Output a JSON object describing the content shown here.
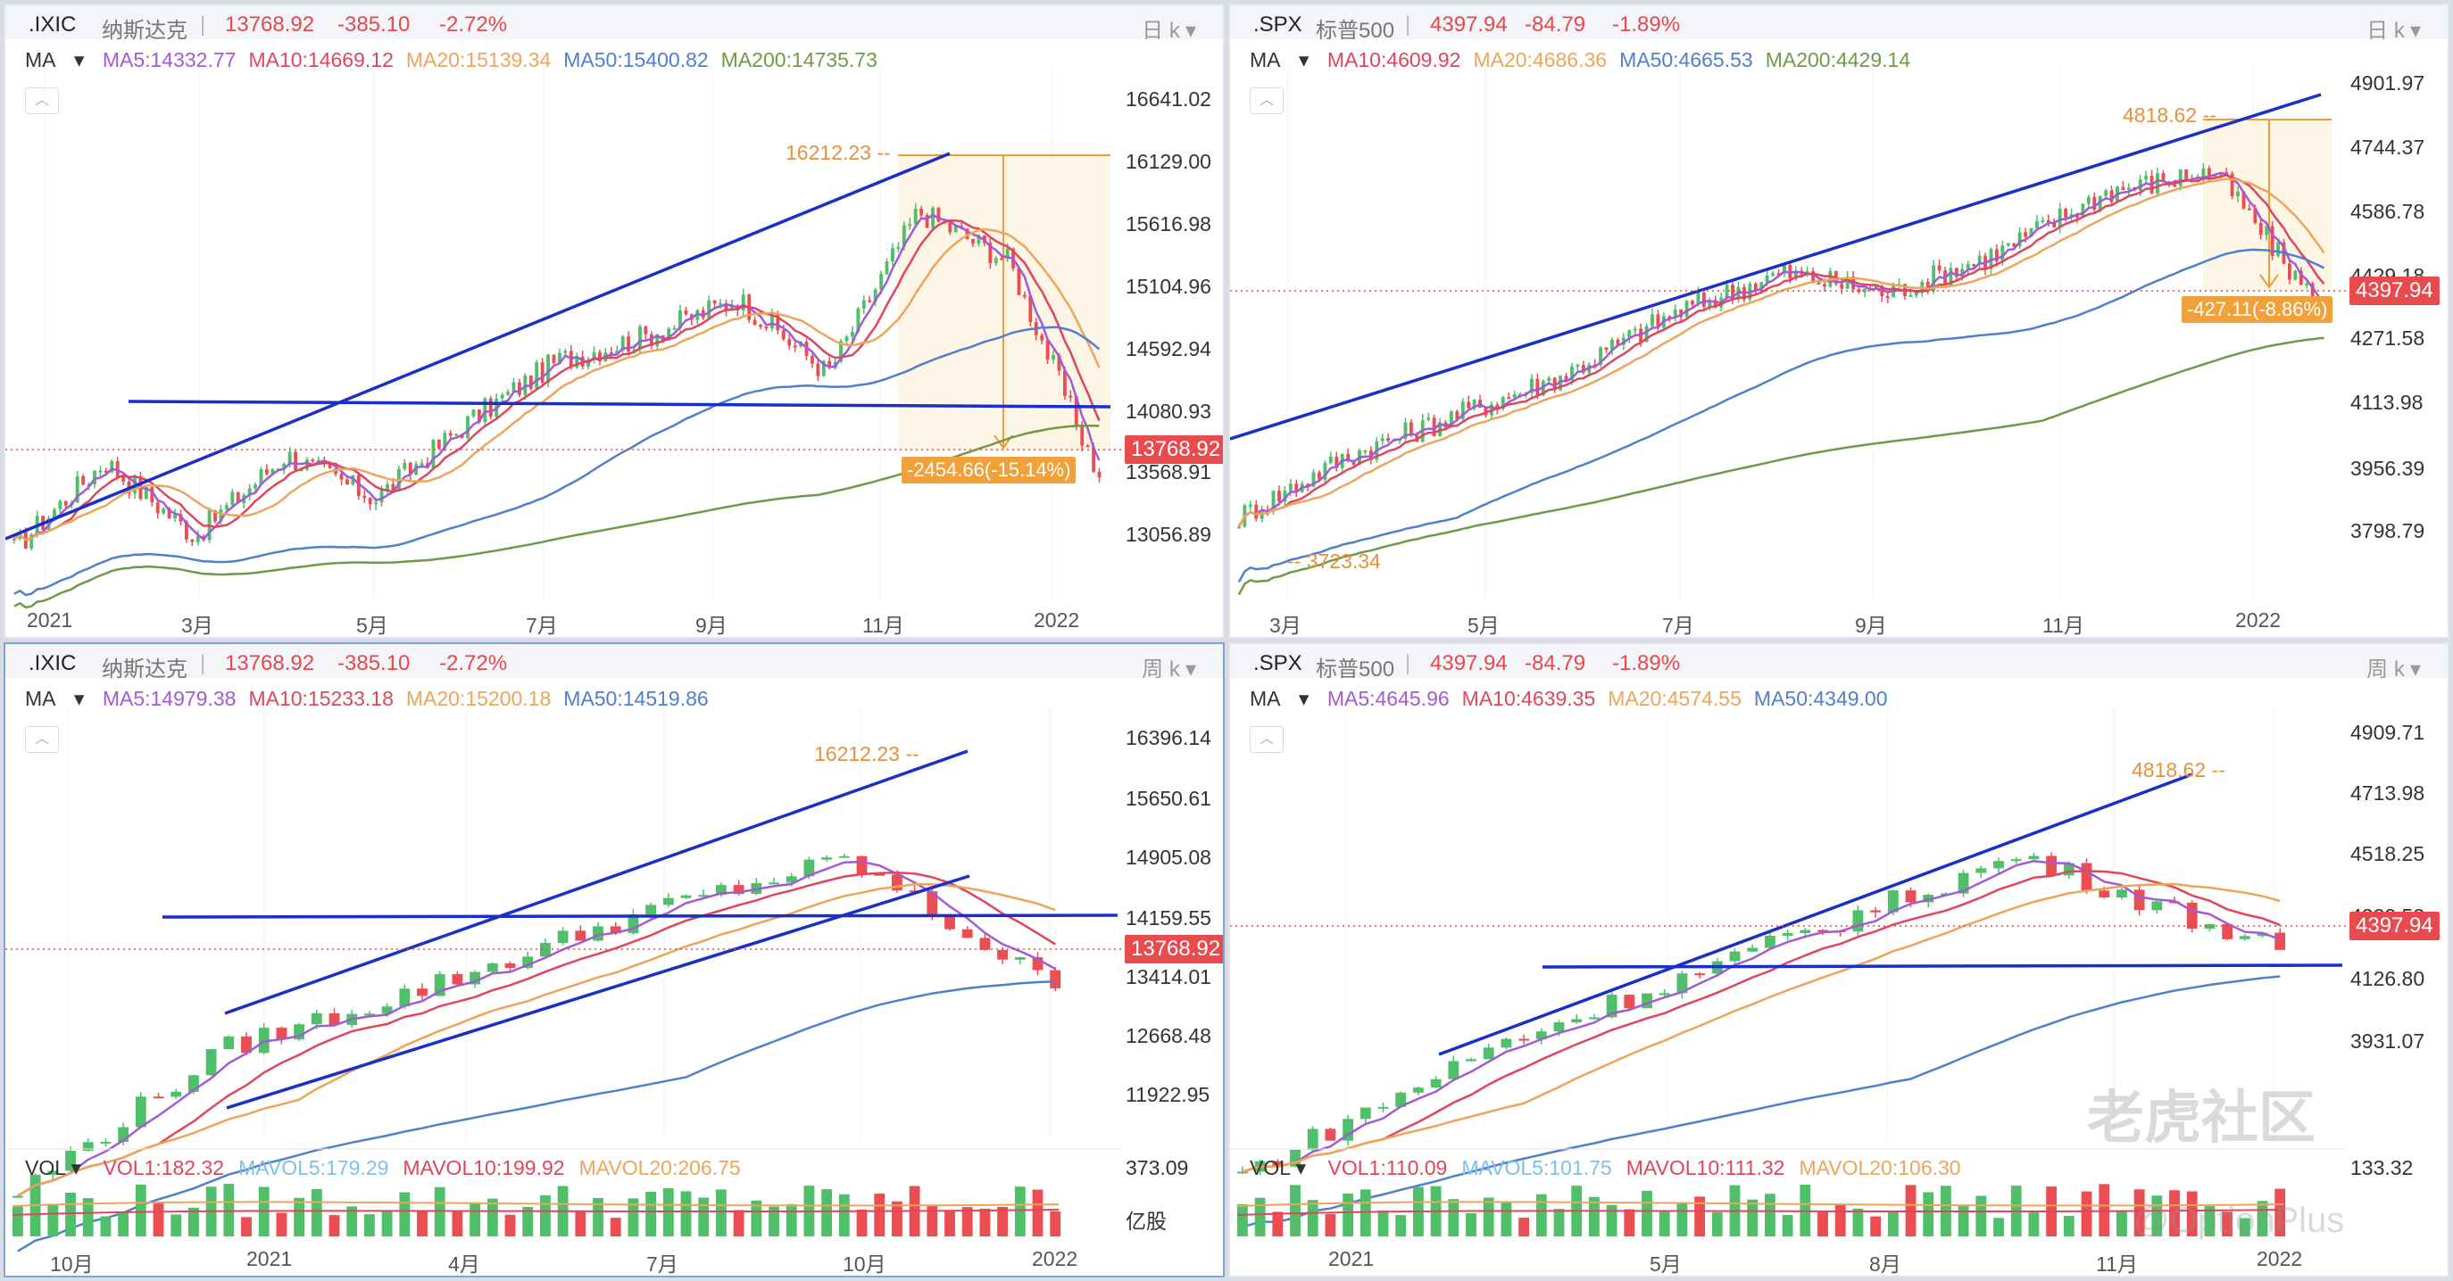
{
  "panels": [
    {
      "symbol": ".IXIC",
      "name": "纳斯达克",
      "price": "13768.92",
      "change": "-385.10",
      "pct": "-2.72%",
      "period": "日 k",
      "ma_label": "MA",
      "ma": [
        {
          "text": "MA5:14332.77",
          "color": "#a35ad6"
        },
        {
          "text": "MA10:14669.12",
          "color": "#e0455e"
        },
        {
          "text": "MA20:15139.34",
          "color": "#eda55a"
        },
        {
          "text": "MA50:15400.82",
          "color": "#4f7fcf"
        },
        {
          "text": "MA200:14735.73",
          "color": "#6f9a47"
        }
      ],
      "y_ticks": [
        "16641.02",
        "16129.00",
        "15616.98",
        "15104.96",
        "14592.94",
        "14080.93",
        "13568.91",
        "13056.89"
      ],
      "x_ticks": [
        "2021",
        "3月",
        "5月",
        "7月",
        "9月",
        "11月",
        "2022"
      ],
      "last_tag": "13768.92",
      "high_label": "16212.23",
      "drop_label": "-2454.66(-15.14%)"
    },
    {
      "symbol": ".SPX",
      "name": "标普500",
      "price": "4397.94",
      "change": "-84.79",
      "pct": "-1.89%",
      "period": "日 k",
      "ma_label": "MA",
      "ma": [
        {
          "text": "MA10:4609.92",
          "color": "#e0455e"
        },
        {
          "text": "MA20:4686.36",
          "color": "#eda55a"
        },
        {
          "text": "MA50:4665.53",
          "color": "#4f7fcf"
        },
        {
          "text": "MA200:4429.14",
          "color": "#6f9a47"
        }
      ],
      "y_ticks": [
        "4901.97",
        "4744.37",
        "4586.78",
        "4429.18",
        "4271.58",
        "4113.98",
        "3956.39",
        "3798.79"
      ],
      "x_ticks": [
        "3月",
        "5月",
        "7月",
        "9月",
        "11月",
        "2022"
      ],
      "last_tag": "4397.94",
      "high_label": "4818.62",
      "low_label": "3723.34",
      "drop_label": "-427.11(-8.86%)"
    },
    {
      "symbol": ".IXIC",
      "name": "纳斯达克",
      "price": "13768.92",
      "change": "-385.10",
      "pct": "-2.72%",
      "period": "周 k",
      "ma_label": "MA",
      "ma": [
        {
          "text": "MA5:14979.38",
          "color": "#a35ad6"
        },
        {
          "text": "MA10:15233.18",
          "color": "#e0455e"
        },
        {
          "text": "MA20:15200.18",
          "color": "#eda55a"
        },
        {
          "text": "MA50:14519.86",
          "color": "#4f7fcf"
        }
      ],
      "y_ticks": [
        "16396.14",
        "15650.61",
        "14905.08",
        "14159.55",
        "13414.01",
        "12668.48",
        "11922.95"
      ],
      "x_ticks": [
        "10月",
        "2021",
        "4月",
        "7月",
        "10月",
        "2022"
      ],
      "last_tag": "13768.92",
      "high_label": "16212.23",
      "vol_label": "VOL",
      "vol": [
        {
          "text": "VOL1:182.32",
          "color": "#e0455e"
        },
        {
          "text": "MAVOL5:179.29",
          "color": "#7ec0ea"
        },
        {
          "text": "MAVOL10:199.92",
          "color": "#e0455e"
        },
        {
          "text": "MAVOL20:206.75",
          "color": "#eda55a"
        }
      ],
      "vol_tick": "373.09",
      "vol_unit": "亿股"
    },
    {
      "symbol": ".SPX",
      "name": "标普500",
      "price": "4397.94",
      "change": "-84.79",
      "pct": "-1.89%",
      "period": "周 k",
      "ma_label": "MA",
      "ma": [
        {
          "text": "MA5:4645.96",
          "color": "#a35ad6"
        },
        {
          "text": "MA10:4639.35",
          "color": "#e0455e"
        },
        {
          "text": "MA20:4574.55",
          "color": "#eda55a"
        },
        {
          "text": "MA50:4349.00",
          "color": "#4f7fcf"
        }
      ],
      "y_ticks": [
        "4909.71",
        "4713.98",
        "4518.25",
        "4322.53",
        "4126.80",
        "3931.07"
      ],
      "x_ticks": [
        "2021",
        "5月",
        "8月",
        "11月",
        "2022"
      ],
      "last_tag": "4397.94",
      "high_label": "4818.62",
      "vol_label": "VOL",
      "vol": [
        {
          "text": "VOL1:110.09",
          "color": "#e0455e"
        },
        {
          "text": "MAVOL5:101.75",
          "color": "#7ec0ea"
        },
        {
          "text": "MAVOL10:111.32",
          "color": "#e0455e"
        },
        {
          "text": "MAVOL20:106.30",
          "color": "#eda55a"
        }
      ],
      "vol_tick": "133.32"
    }
  ],
  "watermark": {
    "brand": "老虎社区",
    "handle": "@OptionPlus"
  },
  "chart_data": [
    {
      "type": "candlestick",
      "title": ".IXIC 纳斯达克 日 k",
      "ylim": [
        12800,
        16900
      ],
      "x": [
        "2021-01",
        "2021-02",
        "2021-03",
        "2021-04",
        "2021-05",
        "2021-06",
        "2021-07",
        "2021-08",
        "2021-09",
        "2021-10",
        "2021-11",
        "2021-12",
        "2022-01"
      ],
      "close": [
        13200,
        13900,
        13300,
        13950,
        13600,
        14200,
        14700,
        14900,
        15200,
        14600,
        15900,
        15500,
        13768.92
      ],
      "high": 16212.23,
      "last": 13768.92,
      "drawdown": -2454.66,
      "drawdown_pct": -15.14
    },
    {
      "type": "candlestick",
      "title": ".SPX 标普500 日 k",
      "ylim": [
        3700,
        4960
      ],
      "x": [
        "2021-03",
        "2021-04",
        "2021-05",
        "2021-06",
        "2021-07",
        "2021-08",
        "2021-09",
        "2021-10",
        "2021-11",
        "2021-12",
        "2022-01"
      ],
      "close": [
        3900,
        4050,
        4150,
        4250,
        4400,
        4500,
        4450,
        4550,
        4700,
        4750,
        4397.94
      ],
      "high": 4818.62,
      "low": 3723.34,
      "last": 4397.94,
      "drawdown": -427.11,
      "drawdown_pct": -8.86
    },
    {
      "type": "candlestick",
      "title": ".IXIC 纳斯达克 周 k",
      "ylim": [
        11500,
        16700
      ],
      "x": [
        "2020-10",
        "2021-01",
        "2021-04",
        "2021-07",
        "2021-10",
        "2022-01"
      ],
      "close": [
        11500,
        13100,
        13800,
        14600,
        15200,
        13768.92
      ],
      "high": 16212.23,
      "last": 13768.92
    },
    {
      "type": "candlestick",
      "title": ".SPX 标普500 周 k",
      "ylim": [
        3750,
        5000
      ],
      "x": [
        "2021-01",
        "2021-05",
        "2021-08",
        "2021-11",
        "2022-01"
      ],
      "close": [
        3800,
        4150,
        4400,
        4650,
        4397.94
      ],
      "high": 4818.62,
      "last": 4397.94
    }
  ]
}
